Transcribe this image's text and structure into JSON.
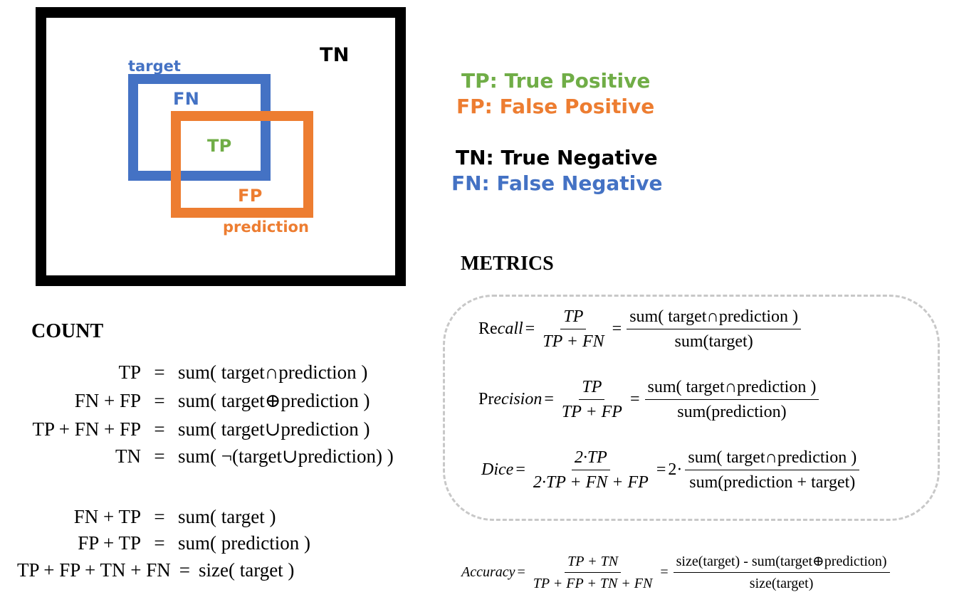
{
  "diagram": {
    "labels": {
      "tn": "TN",
      "target": "target",
      "fn": "FN",
      "tp": "TP",
      "fp": "FP",
      "prediction": "prediction"
    },
    "colors": {
      "tp": "#70AD47",
      "fp": "#ED7D31",
      "tn": "#000000",
      "fn": "#4472C4",
      "outer": "#000000",
      "target_box": "#4472C4",
      "prediction_box": "#ED7D31",
      "metrics_border": "#c8c8c8"
    }
  },
  "legend": {
    "tp": "TP: True Positive",
    "fp": "FP: False Positive",
    "tn": "TN: True Negative",
    "fn": "FN: False Negative"
  },
  "count": {
    "heading": "COUNT",
    "group1": [
      {
        "lhs": "TP",
        "eq": "=",
        "rhs": "sum( target∩prediction )"
      },
      {
        "lhs": "FN + FP",
        "eq": "=",
        "rhs": "sum( target⊕prediction )"
      },
      {
        "lhs": "TP + FN + FP",
        "eq": "=",
        "rhs": "sum( target∪prediction )"
      },
      {
        "lhs": "TN",
        "eq": "=",
        "rhs": "sum( ¬(target∪prediction) )"
      }
    ],
    "group2": [
      {
        "lhs": "FN + TP",
        "eq": "=",
        "rhs": "sum( target )"
      },
      {
        "lhs": "FP + TP",
        "eq": "=",
        "rhs": "sum( prediction )"
      },
      {
        "lhs": "TP + FP + TN + FN",
        "eq": "=",
        "rhs": "size( target )"
      }
    ]
  },
  "metrics": {
    "heading": "METRICS",
    "recall": {
      "name_prefix": "Re",
      "name_italic": "call",
      "eq": "=",
      "frac1_num": "TP",
      "frac1_den": "TP + FN",
      "frac2_num": "sum( target∩prediction )",
      "frac2_den": "sum(target)"
    },
    "precision": {
      "name_prefix": "Pr",
      "name_italic": "ecision",
      "eq": "=",
      "frac1_num": "TP",
      "frac1_den": "TP + FP",
      "frac2_num": "sum( target∩prediction )",
      "frac2_den": "sum(prediction)"
    },
    "dice": {
      "name": "Dice",
      "eq": "=",
      "frac1_num": "2·TP",
      "frac1_den": "2·TP + FN + FP",
      "factor": "2·",
      "frac2_num": "sum( target∩prediction )",
      "frac2_den": "sum(prediction + target)"
    },
    "accuracy": {
      "name": "Accuracy",
      "eq": "=",
      "frac1_num": "TP + TN",
      "frac1_den": "TP + FP + TN + FN",
      "frac2_num": "size(target) - sum(target⊕prediction)",
      "frac2_den": "size(target)"
    }
  }
}
